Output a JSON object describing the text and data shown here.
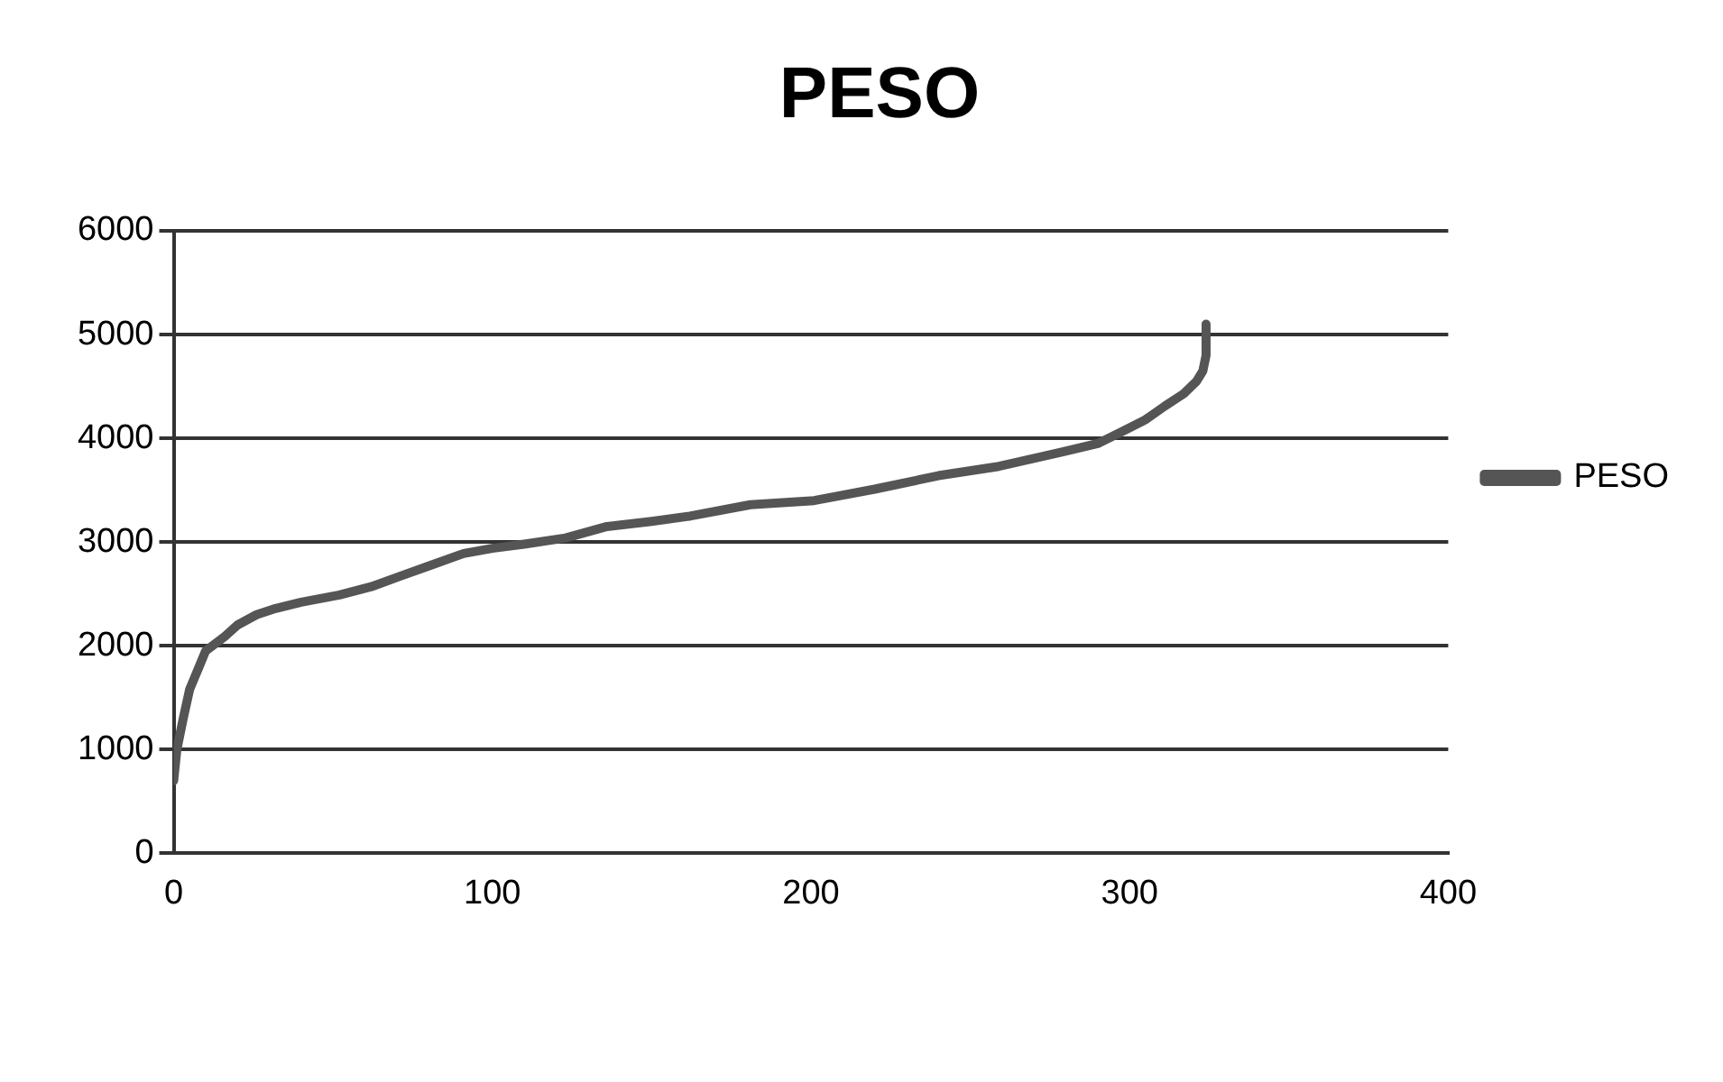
{
  "chart_data": {
    "type": "line",
    "title": "PESO",
    "x": [
      0,
      1,
      3,
      5,
      8,
      10,
      13,
      16,
      20,
      26,
      32,
      40,
      52,
      62,
      71,
      81,
      91,
      100,
      110,
      123,
      136,
      150,
      162,
      181,
      201,
      220,
      240,
      259,
      279,
      290,
      298,
      305,
      311,
      317,
      321,
      323,
      324,
      324
    ],
    "series": [
      {
        "name": "PESO",
        "color": "#555555",
        "values": [
          700,
          1000,
          1300,
          1580,
          1800,
          1950,
          2020,
          2090,
          2200,
          2300,
          2360,
          2420,
          2490,
          2570,
          2670,
          2780,
          2890,
          2940,
          2980,
          3040,
          3150,
          3200,
          3250,
          3360,
          3400,
          3510,
          3640,
          3730,
          3870,
          3950,
          4070,
          4180,
          4310,
          4430,
          4550,
          4650,
          4800,
          5100
        ]
      }
    ],
    "xlim": [
      0,
      400
    ],
    "xticks": [
      0,
      100,
      200,
      300,
      400
    ],
    "ylim": [
      0,
      6000
    ],
    "yticks": [
      0,
      1000,
      2000,
      3000,
      4000,
      5000,
      6000
    ],
    "grid": "y",
    "legend": "right",
    "marker": "none",
    "line_style": "solid"
  }
}
